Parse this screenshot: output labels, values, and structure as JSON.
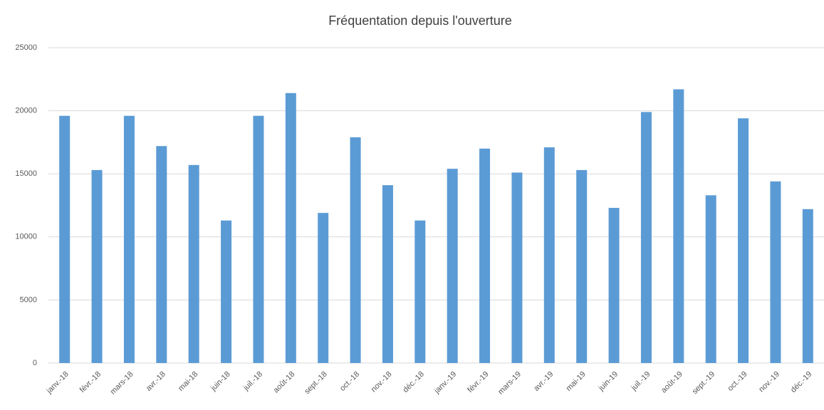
{
  "chart_data": {
    "type": "bar",
    "title": "Fréquentation depuis l'ouverture",
    "categories": [
      "janv.-18",
      "févr.-18",
      "mars-18",
      "avr.-18",
      "mai-18",
      "juin-18",
      "juil.-18",
      "août-18",
      "sept.-18",
      "oct.-18",
      "nov.-18",
      "déc.-18",
      "janv.-19",
      "févr.-19",
      "mars-19",
      "avr.-19",
      "mai-19",
      "juin-19",
      "juil.-19",
      "août-19",
      "sept.-19",
      "oct.-19",
      "nov.-19",
      "déc.-19"
    ],
    "values": [
      19600,
      15300,
      19600,
      17200,
      15700,
      11300,
      19600,
      21400,
      11900,
      17900,
      14100,
      11300,
      15400,
      17000,
      15100,
      17100,
      15300,
      12300,
      19900,
      21700,
      13300,
      19400,
      14400,
      12200
    ],
    "color": "#5b9bd5",
    "ylim": [
      0,
      25000
    ],
    "yticks": [
      0,
      5000,
      10000,
      15000,
      20000,
      25000
    ],
    "grid": true
  }
}
